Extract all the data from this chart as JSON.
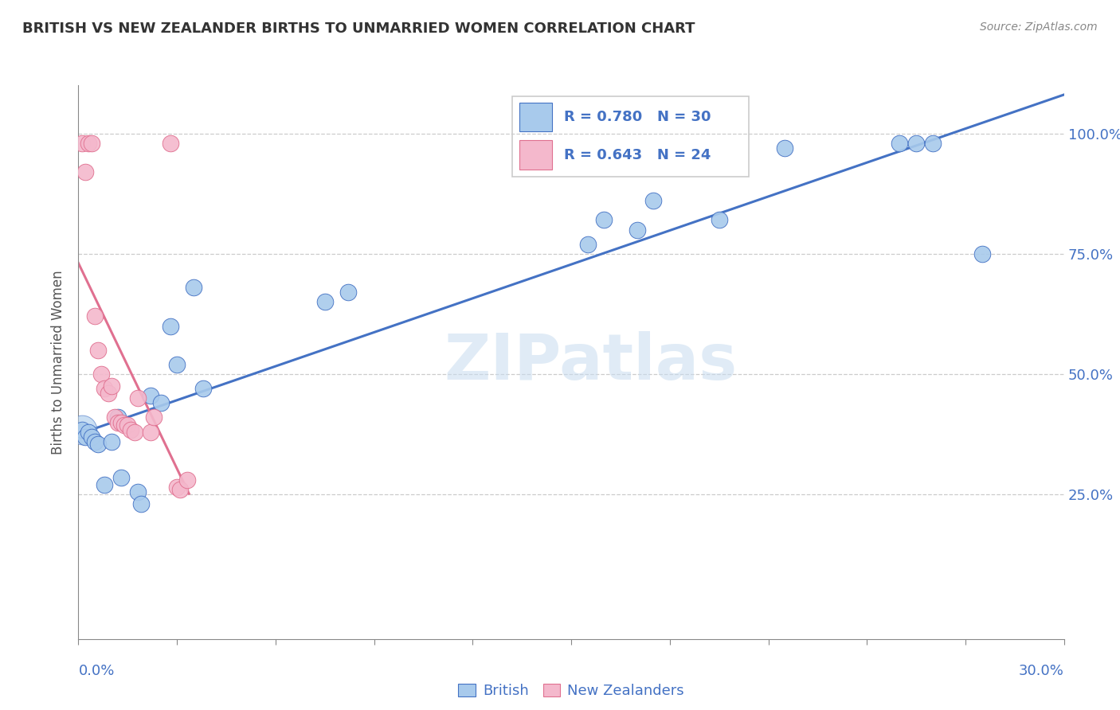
{
  "title": "BRITISH VS NEW ZEALANDER BIRTHS TO UNMARRIED WOMEN CORRELATION CHART",
  "source": "Source: ZipAtlas.com",
  "ylabel": "Births to Unmarried Women",
  "watermark": "ZIPatlas",
  "xlim": [
    0.0,
    0.3
  ],
  "ylim": [
    -0.05,
    1.1
  ],
  "yticks": [
    0.25,
    0.5,
    0.75,
    1.0
  ],
  "ytick_labels": [
    "25.0%",
    "50.0%",
    "75.0%",
    "100.0%"
  ],
  "legend_blue_r": "R = 0.780",
  "legend_blue_n": "N = 30",
  "legend_pink_r": "R = 0.643",
  "legend_pink_n": "N = 24",
  "blue_color": "#A8CAEC",
  "pink_color": "#F4B8CC",
  "blue_line_color": "#4472C4",
  "pink_line_color": "#E07090",
  "axis_label_color": "#4472C4",
  "grid_color": "#CCCCCC",
  "british_x": [
    0.001,
    0.002,
    0.003,
    0.004,
    0.005,
    0.006,
    0.008,
    0.01,
    0.012,
    0.013,
    0.018,
    0.019,
    0.022,
    0.025,
    0.028,
    0.03,
    0.035,
    0.038,
    0.075,
    0.082,
    0.155,
    0.16,
    0.17,
    0.175,
    0.195,
    0.215,
    0.25,
    0.255,
    0.26,
    0.275
  ],
  "british_y": [
    0.385,
    0.37,
    0.38,
    0.37,
    0.36,
    0.355,
    0.27,
    0.36,
    0.41,
    0.285,
    0.255,
    0.23,
    0.455,
    0.44,
    0.6,
    0.52,
    0.68,
    0.47,
    0.65,
    0.67,
    0.77,
    0.82,
    0.8,
    0.86,
    0.82,
    0.97,
    0.98,
    0.98,
    0.98,
    0.75
  ],
  "nz_x": [
    0.001,
    0.002,
    0.003,
    0.004,
    0.005,
    0.006,
    0.007,
    0.008,
    0.009,
    0.01,
    0.011,
    0.012,
    0.013,
    0.014,
    0.015,
    0.016,
    0.017,
    0.018,
    0.022,
    0.023,
    0.028,
    0.03,
    0.031,
    0.033
  ],
  "nz_y": [
    0.98,
    0.92,
    0.98,
    0.98,
    0.62,
    0.55,
    0.5,
    0.47,
    0.46,
    0.475,
    0.41,
    0.4,
    0.4,
    0.395,
    0.395,
    0.385,
    0.38,
    0.45,
    0.38,
    0.41,
    0.98,
    0.265,
    0.26,
    0.28
  ]
}
